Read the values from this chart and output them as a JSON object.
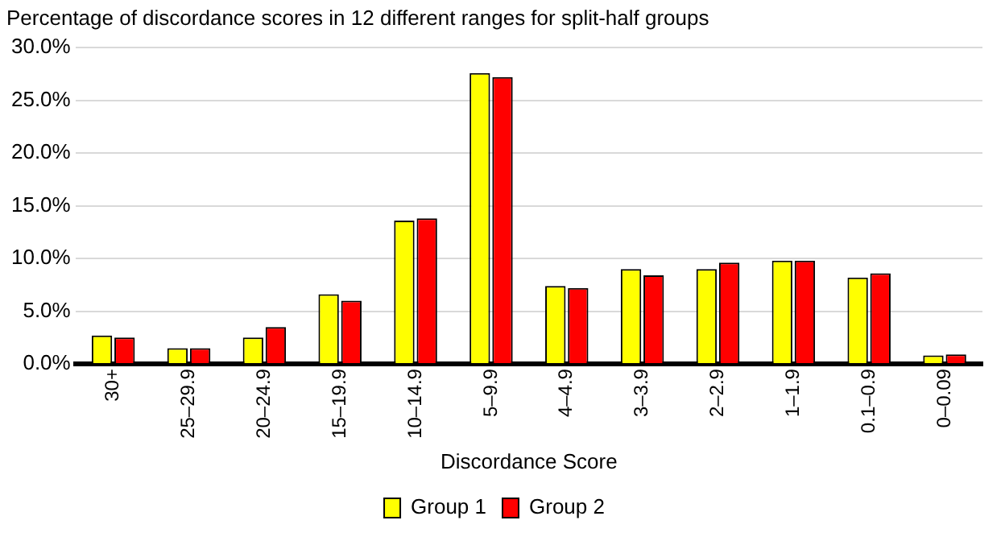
{
  "chart_data": {
    "type": "bar",
    "title": "Percentage of discordance scores in 12 different ranges for split-half groups",
    "xlabel": "Discordance Score",
    "categories": [
      "30+",
      "25–29.9",
      "20–24.9",
      "15–19.9",
      "10–14.9",
      "5–9.9",
      "4–4.9",
      "3–3.9",
      "2–2.9",
      "1–1.9",
      "0.1–0.9",
      "0–0.09"
    ],
    "series": [
      {
        "name": "Group 1",
        "color": "#ffff00",
        "values": [
          2.7,
          1.5,
          2.5,
          6.6,
          13.6,
          27.6,
          7.4,
          9.0,
          9.0,
          9.8,
          8.2,
          0.8
        ]
      },
      {
        "name": "Group 2",
        "color": "#ff0000",
        "values": [
          2.5,
          1.5,
          3.5,
          6.0,
          13.8,
          27.2,
          7.2,
          8.4,
          9.6,
          9.8,
          8.6,
          0.9
        ]
      }
    ],
    "ylim": [
      0,
      30
    ],
    "yticks": [
      {
        "value": 0,
        "label": "0.0%"
      },
      {
        "value": 5,
        "label": "5.0%"
      },
      {
        "value": 10,
        "label": "10.0%"
      },
      {
        "value": 15,
        "label": "15.0%"
      },
      {
        "value": 20,
        "label": "20.0%"
      },
      {
        "value": 25,
        "label": "25.0%"
      },
      {
        "value": 30,
        "label": "30.0%"
      }
    ],
    "grid": "y",
    "legend": "bottom"
  }
}
